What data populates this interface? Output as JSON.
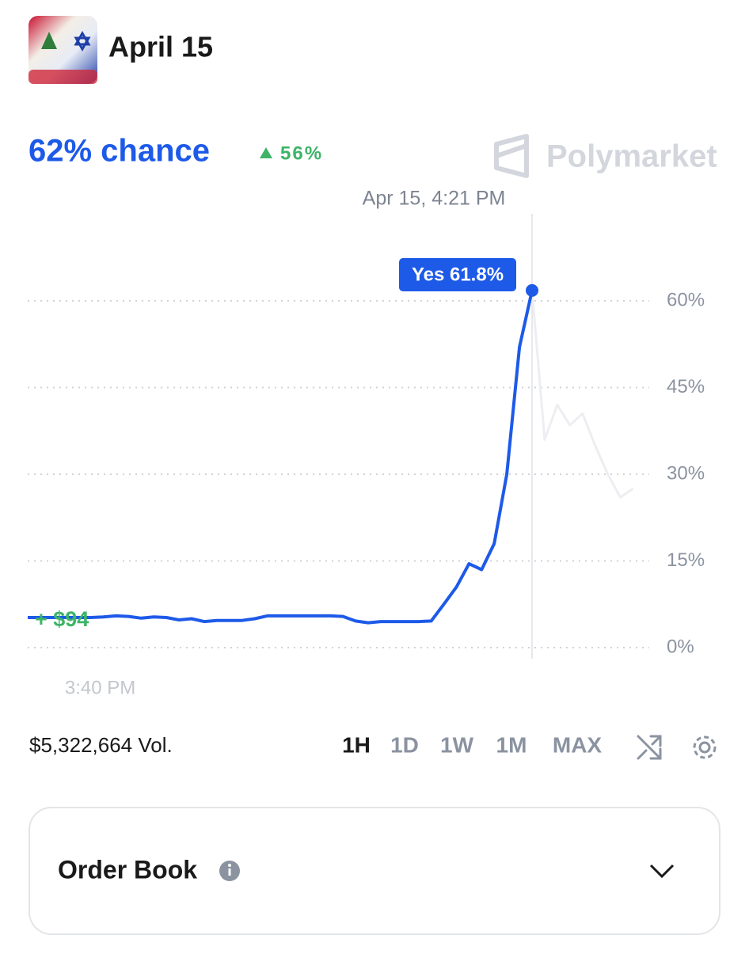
{
  "header": {
    "title": "April 15"
  },
  "market": {
    "chance": "62% chance",
    "change": "56%",
    "brand": "Polymarket"
  },
  "chart_data": {
    "type": "line",
    "hover_date": "Apr 15, 4:21 PM",
    "tooltip": "Yes 61.8%",
    "annotation": "+ $94",
    "categories": [
      null,
      null,
      null,
      null,
      null,
      null,
      "3:40 PM",
      null,
      null,
      null,
      null,
      null,
      null,
      null,
      null,
      null,
      null,
      null,
      null,
      null,
      null,
      null,
      null,
      null,
      null,
      null,
      null,
      null,
      null,
      null,
      null,
      null,
      null,
      null,
      null,
      null,
      null,
      null,
      null,
      null,
      null,
      null,
      null,
      null,
      null,
      null,
      null,
      null,
      null
    ],
    "series": [
      {
        "name": "Yes",
        "color": "#1d5ae8",
        "values": [
          5.2,
          5.2,
          5.2,
          5.2,
          5.2,
          5.2,
          5.3,
          5.5,
          5.4,
          5.1,
          5.3,
          5.2,
          4.8,
          5.0,
          4.5,
          4.7,
          4.7,
          4.7,
          5.0,
          5.5,
          5.5,
          5.5,
          5.5,
          5.5,
          5.5,
          5.4,
          4.6,
          4.3,
          4.5,
          4.5,
          4.5,
          4.5,
          4.6,
          7.5,
          10.5,
          14.5,
          13.5,
          18,
          30,
          52,
          61.8,
          null,
          null,
          null,
          null,
          null,
          null,
          null,
          null
        ]
      },
      {
        "color": "#eceef1",
        "values": [
          null,
          null,
          null,
          null,
          null,
          null,
          null,
          null,
          null,
          null,
          null,
          null,
          null,
          null,
          null,
          null,
          null,
          null,
          null,
          null,
          null,
          null,
          null,
          null,
          null,
          null,
          null,
          null,
          null,
          null,
          null,
          null,
          null,
          null,
          null,
          null,
          null,
          null,
          null,
          null,
          61.8,
          36,
          42,
          38.5,
          40.5,
          35,
          30,
          26,
          27.5
        ]
      }
    ],
    "ylim": [
      0,
      60
    ],
    "yticks": [
      {
        "value": 0,
        "label": "0%"
      },
      {
        "value": 15,
        "label": "15%"
      },
      {
        "value": 30,
        "label": "30%"
      },
      {
        "value": 45,
        "label": "45%"
      },
      {
        "value": 60,
        "label": "60%"
      }
    ],
    "grid": true
  },
  "controls": {
    "volume": "$5,322,664 Vol.",
    "ranges": [
      "1H",
      "1D",
      "1W",
      "1M",
      "MAX"
    ]
  },
  "order_book": {
    "title": "Order Book"
  }
}
